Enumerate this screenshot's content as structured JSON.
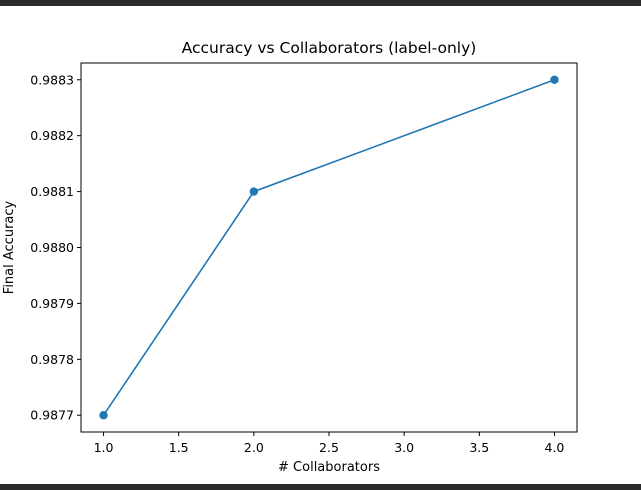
{
  "chart_data": {
    "type": "line",
    "title": "Accuracy vs Collaborators (label-only)",
    "xlabel": "# Collaborators",
    "ylabel": "Final Accuracy",
    "xlim": [
      0.85,
      4.15
    ],
    "ylim": [
      0.98767,
      0.98833
    ],
    "x_ticks": [
      1.0,
      1.5,
      2.0,
      2.5,
      3.0,
      3.5,
      4.0
    ],
    "x_tick_labels": [
      "1.0",
      "1.5",
      "2.0",
      "2.5",
      "3.0",
      "3.5",
      "4.0"
    ],
    "y_ticks": [
      0.9877,
      0.9878,
      0.9879,
      0.988,
      0.9881,
      0.9882,
      0.9883
    ],
    "y_tick_labels": [
      "0.9877",
      "0.9878",
      "0.9879",
      "0.9880",
      "0.9881",
      "0.9882",
      "0.9883"
    ],
    "grid": false,
    "series": [
      {
        "color": "#1f77b4",
        "marker": "circle",
        "x": [
          1,
          2,
          4
        ],
        "y": [
          0.9877,
          0.9881,
          0.9883
        ]
      }
    ]
  }
}
